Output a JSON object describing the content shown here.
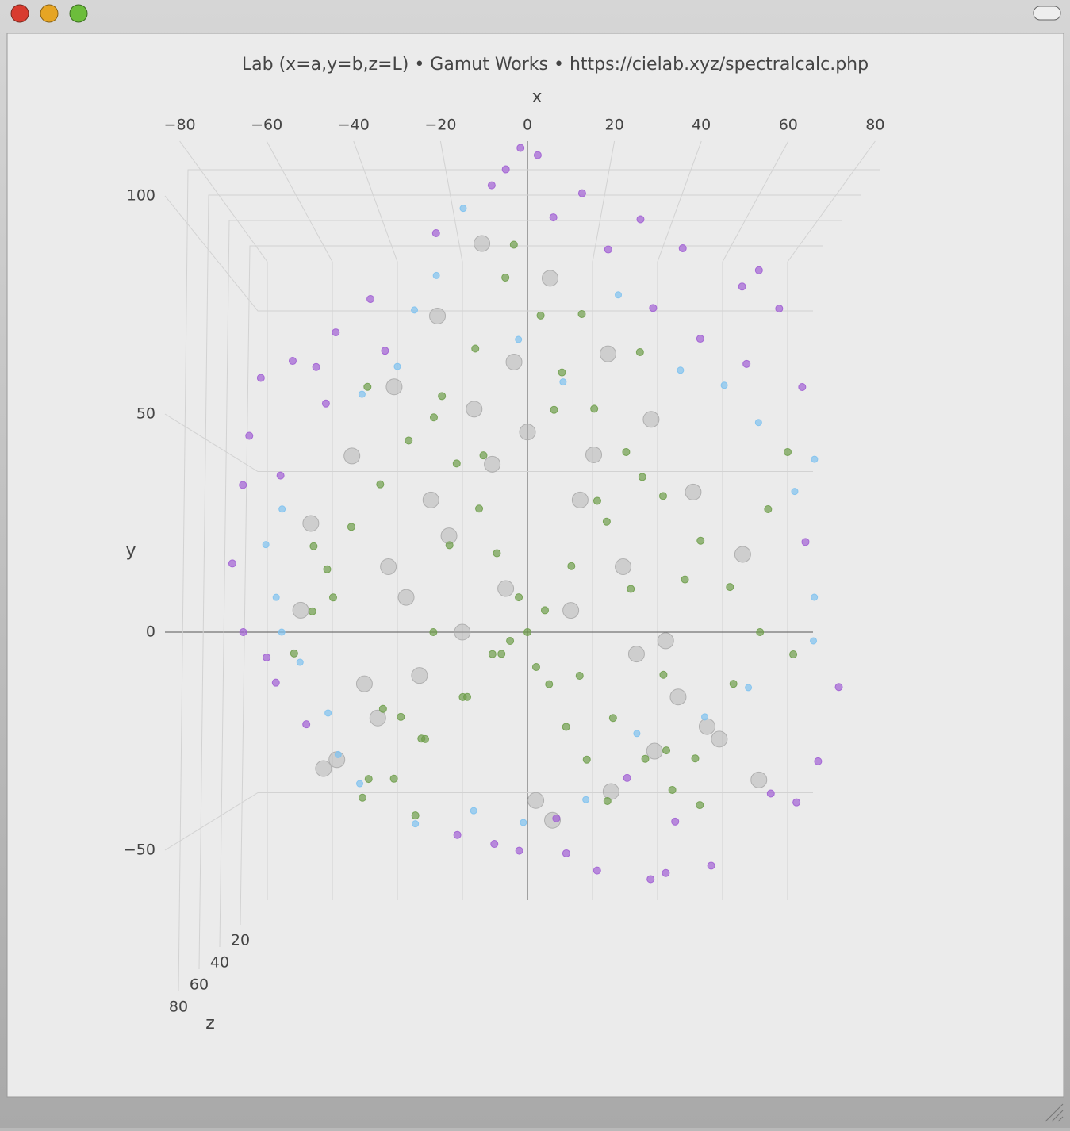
{
  "chart_data": {
    "type": "scatter3d",
    "title": "Lab (x=a,y=b,z=L)  •  Gamut Works  •  https://cielab.xyz/spectralcalc.php",
    "xlabel": "x",
    "ylabel": "y",
    "zlabel": "z",
    "xlim": [
      -80,
      80
    ],
    "ylim": [
      -50,
      100
    ],
    "zlim": [
      0,
      100
    ],
    "xticks": [
      {
        "value": -80,
        "label": "−80"
      },
      {
        "value": -60,
        "label": "−60"
      },
      {
        "value": -40,
        "label": "−40"
      },
      {
        "value": -20,
        "label": "−20"
      },
      0,
      20,
      40,
      60,
      80
    ],
    "yticks": [
      {
        "value": -50,
        "label": "−50"
      },
      0,
      50,
      100
    ],
    "zticks": [
      20,
      40,
      60,
      80
    ],
    "grid": true,
    "series": [
      {
        "color": "#ababab",
        "x": [
          -10,
          5,
          -20,
          18,
          -30,
          28,
          -40,
          38,
          -50,
          50,
          -5,
          10,
          -15,
          25,
          -25,
          35,
          -35,
          45,
          -45,
          55,
          0,
          -8,
          12,
          -18,
          22,
          -28,
          32,
          -38,
          42,
          -48,
          2,
          -3,
          6,
          -12,
          15,
          -22,
          20,
          -32,
          30,
          -52
        ],
        "y": [
          85,
          78,
          70,
          62,
          55,
          48,
          40,
          32,
          25,
          18,
          10,
          5,
          0,
          -5,
          -10,
          -15,
          -20,
          -25,
          -30,
          -35,
          45,
          38,
          30,
          22,
          15,
          8,
          -2,
          -12,
          -22,
          -32,
          -40,
          60,
          -45,
          50,
          40,
          30,
          -38,
          15,
          -28,
          5
        ],
        "z": [
          80,
          75,
          72,
          68,
          64,
          60,
          56,
          52,
          48,
          44,
          50,
          48,
          50,
          52,
          46,
          44,
          40,
          38,
          34,
          30,
          62,
          58,
          56,
          52,
          50,
          48,
          46,
          42,
          40,
          36,
          28,
          70,
          24,
          64,
          60,
          56,
          26,
          50,
          34,
          52
        ]
      },
      {
        "color": "#a15fd4",
        "x": [
          -1.5,
          -4.7,
          2.2,
          -7.8,
          12,
          5.7,
          25,
          -20,
          18,
          34.5,
          52,
          48,
          57,
          -35,
          -43,
          -53,
          -48,
          -60,
          -46,
          -64,
          -57,
          -66,
          -69,
          -67,
          -62,
          -60,
          -53,
          74,
          70,
          65,
          59,
          45,
          34,
          30,
          17,
          9.5,
          -2,
          -8,
          -17,
          50,
          63,
          65,
          39,
          28,
          -32,
          24,
          36,
          7
        ],
        "y": [
          104,
          100,
          102,
          97,
          96,
          91,
          91,
          87,
          85,
          85,
          81,
          77,
          73,
          74,
          67,
          61,
          60,
          57,
          52,
          45,
          36,
          34,
          16,
          0,
          -6,
          -12,
          -22,
          -13,
          -31,
          -41,
          -39,
          -57,
          -59,
          -60,
          -58,
          -54,
          -53,
          -51,
          -49,
          61,
          56,
          21,
          66,
          72,
          63,
          -35,
          -46,
          -45
        ],
        "z": [
          92,
          88,
          95,
          85,
          80,
          78,
          75,
          82,
          70,
          72,
          65,
          68,
          60,
          70,
          66,
          62,
          58,
          64,
          55,
          50,
          48,
          45,
          40,
          35,
          30,
          28,
          25,
          30,
          22,
          20,
          18,
          12,
          10,
          15,
          14,
          12,
          16,
          20,
          18,
          55,
          52,
          40,
          62,
          70,
          65,
          22,
          15,
          18
        ]
      },
      {
        "color": "#7fc2ef",
        "x": [
          -14,
          -25,
          20,
          -20,
          -29,
          -37,
          34,
          44,
          52,
          65,
          61,
          66,
          66,
          -56,
          -60,
          -58,
          -57,
          -53,
          -47,
          -45,
          -40,
          -27,
          -13,
          -1,
          14,
          26,
          42,
          52,
          -2,
          8
        ],
        "y": [
          92,
          71,
          74,
          78,
          59,
          53,
          58,
          55,
          47,
          39,
          32,
          8,
          -2,
          28,
          20,
          8,
          0,
          -7,
          -19,
          -29,
          -36,
          -46,
          -43,
          -46,
          -40,
          -24,
          -20,
          -13,
          65,
          56
        ],
        "z": [
          85,
          75,
          78,
          80,
          70,
          68,
          72,
          68,
          64,
          60,
          55,
          50,
          48,
          55,
          52,
          48,
          45,
          42,
          35,
          30,
          28,
          22,
          20,
          18,
          25,
          30,
          32,
          36,
          70,
          65
        ]
      },
      {
        "color": "#6f9e4c",
        "x": [
          -5,
          3,
          -12,
          8,
          -20,
          15,
          -28,
          22,
          -35,
          30,
          -42,
          38,
          -48,
          45,
          -52,
          52,
          -8,
          12,
          -15,
          20,
          -25,
          28,
          -32,
          35,
          -40,
          42,
          -3,
          6,
          -10,
          16,
          -18,
          24,
          -22,
          32,
          -30,
          40,
          -38,
          48,
          -45,
          55,
          0,
          4,
          -6,
          10,
          -14,
          18,
          -24,
          26,
          -34,
          36,
          2,
          -2,
          5,
          -7,
          9,
          -11,
          14,
          -16,
          19,
          -21,
          58,
          60,
          -50,
          -55,
          25,
          -27,
          33,
          -36,
          12,
          -4
        ],
        "y": [
          80,
          72,
          65,
          60,
          55,
          50,
          45,
          40,
          35,
          30,
          25,
          20,
          15,
          10,
          5,
          0,
          -5,
          -10,
          -15,
          -20,
          -25,
          -30,
          -35,
          -38,
          -40,
          -42,
          85,
          50,
          40,
          30,
          20,
          10,
          0,
          -10,
          -20,
          -30,
          -35,
          -12,
          8,
          28,
          0,
          5,
          -5,
          15,
          -15,
          25,
          -25,
          35,
          -18,
          12,
          -8,
          8,
          -12,
          18,
          -22,
          28,
          -30,
          38,
          -40,
          48,
          40,
          -5,
          20,
          -5,
          62,
          -44,
          -28,
          55,
          70,
          -2
        ],
        "z": [
          60,
          55,
          50,
          45,
          40,
          65,
          35,
          70,
          30,
          75,
          28,
          80,
          25,
          72,
          20,
          68,
          55,
          50,
          45,
          40,
          35,
          30,
          25,
          20,
          18,
          15,
          78,
          62,
          58,
          52,
          48,
          44,
          40,
          36,
          32,
          28,
          26,
          42,
          46,
          54,
          50,
          52,
          48,
          56,
          44,
          58,
          38,
          60,
          36,
          54,
          50,
          49,
          47,
          53,
          42,
          57,
          34,
          61,
          30,
          66,
          70,
          62,
          40,
          35,
          72,
          22,
          30,
          64,
          76,
          50
        ]
      }
    ]
  }
}
